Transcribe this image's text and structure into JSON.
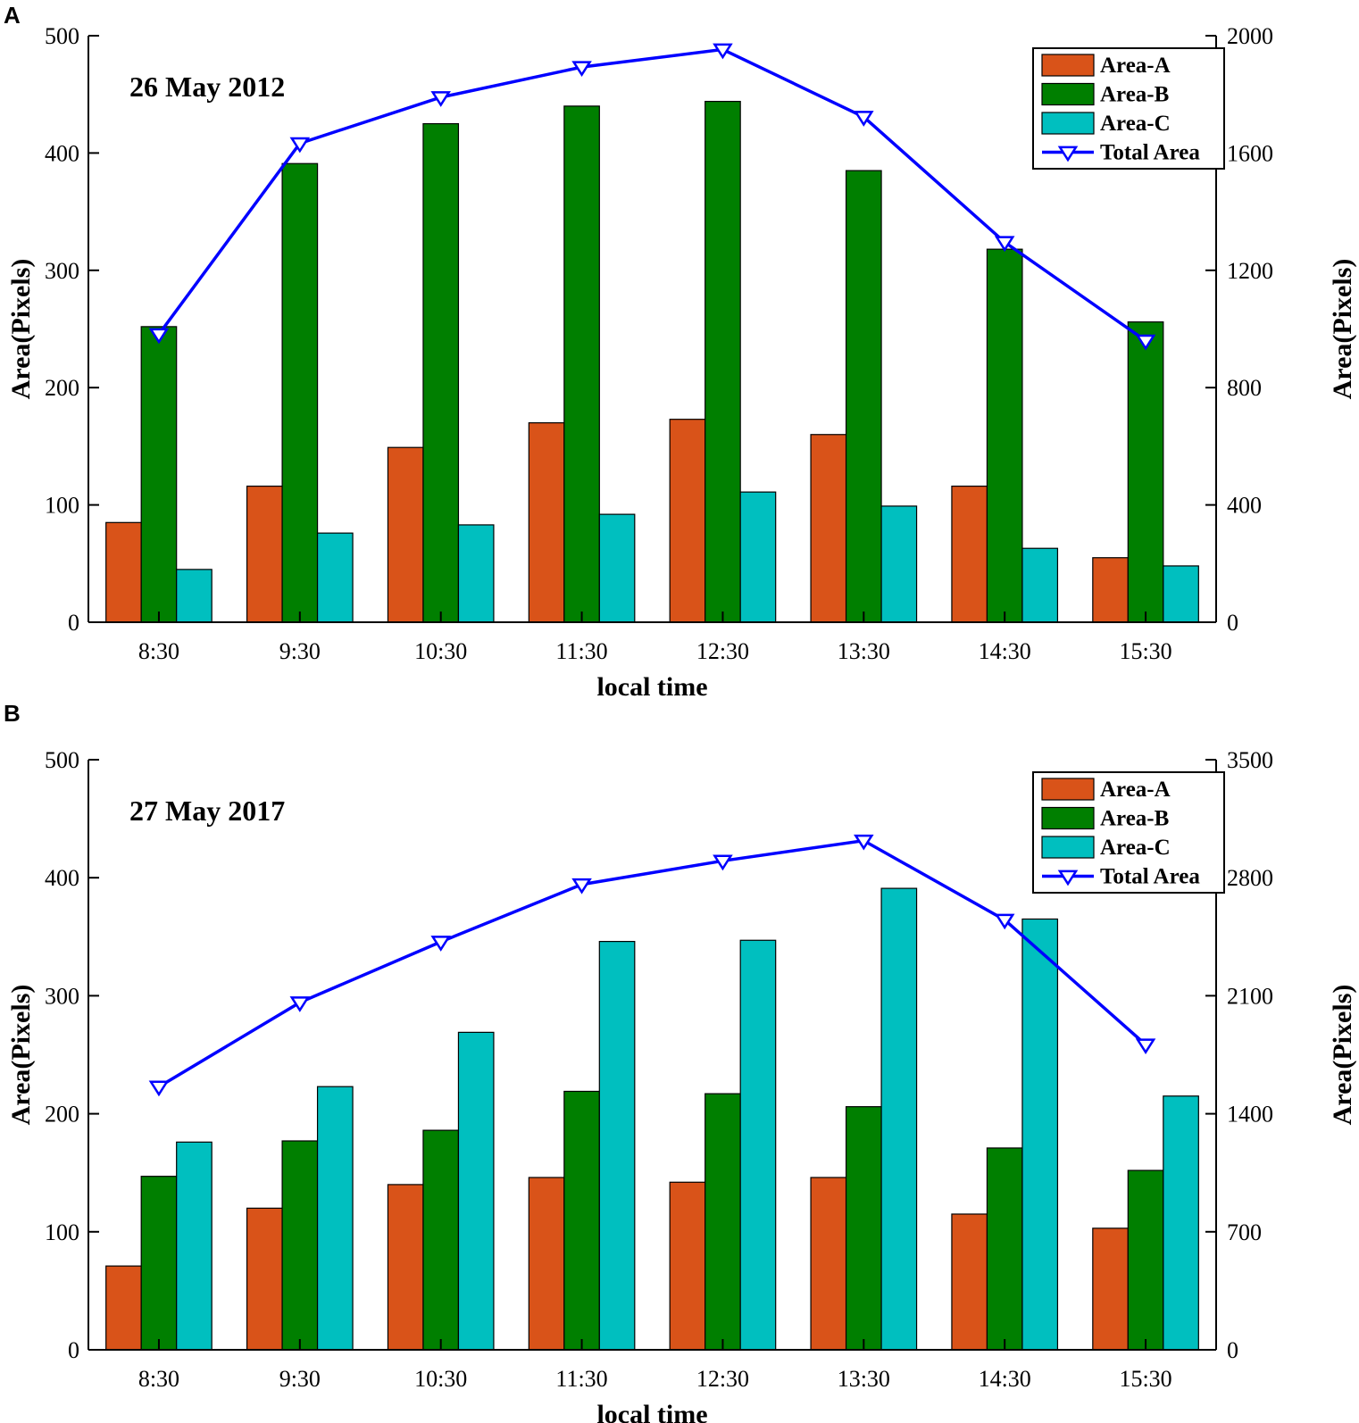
{
  "chart_data": [
    {
      "panel": "A",
      "type": "bar",
      "annotation": "26 May 2012",
      "categories": [
        "8:30",
        "9:30",
        "10:30",
        "11:30",
        "12:30",
        "13:30",
        "14:30",
        "15:30"
      ],
      "series": [
        {
          "name": "Area-A",
          "type": "bar",
          "axis": "left",
          "color": "#D95319",
          "values": [
            85,
            116,
            149,
            170,
            173,
            160,
            116,
            55
          ]
        },
        {
          "name": "Area-B",
          "type": "bar",
          "axis": "left",
          "color": "#007F00",
          "values": [
            252,
            391,
            425,
            440,
            444,
            385,
            318,
            256
          ]
        },
        {
          "name": "Area-C",
          "type": "bar",
          "axis": "left",
          "color": "#00BFBF",
          "values": [
            45,
            76,
            83,
            92,
            111,
            99,
            63,
            48
          ]
        },
        {
          "name": "Total Area",
          "type": "line",
          "axis": "right",
          "color": "#0000FF",
          "marker": "triangle-down",
          "values": [
            982,
            1633,
            1790,
            1893,
            1953,
            1723,
            1296,
            960
          ]
        }
      ],
      "xlabel": "local time",
      "ylabel": "Area(Pixels)",
      "ylabel_right": "Area(Pixels)",
      "ylim": [
        0,
        500
      ],
      "yticks": [
        0,
        100,
        200,
        300,
        400,
        500
      ],
      "ylim_right": [
        0,
        2000
      ],
      "yticks_right": [
        0,
        400,
        800,
        1200,
        1600,
        2000
      ],
      "legend": [
        "Area-A",
        "Area-B",
        "Area-C",
        "Total Area"
      ],
      "legend_position": "top-right",
      "grid": false
    },
    {
      "panel": "B",
      "type": "bar",
      "annotation": "27 May 2017",
      "categories": [
        "8:30",
        "9:30",
        "10:30",
        "11:30",
        "12:30",
        "13:30",
        "14:30",
        "15:30"
      ],
      "series": [
        {
          "name": "Area-A",
          "type": "bar",
          "axis": "left",
          "color": "#D95319",
          "values": [
            71,
            120,
            140,
            146,
            142,
            146,
            115,
            103
          ]
        },
        {
          "name": "Area-B",
          "type": "bar",
          "axis": "left",
          "color": "#007F00",
          "values": [
            147,
            177,
            186,
            219,
            217,
            206,
            171,
            152
          ]
        },
        {
          "name": "Area-C",
          "type": "bar",
          "axis": "left",
          "color": "#00BFBF",
          "values": [
            176,
            223,
            269,
            346,
            347,
            391,
            365,
            215
          ]
        },
        {
          "name": "Total Area",
          "type": "line",
          "axis": "right",
          "color": "#0000FF",
          "marker": "triangle-down",
          "values": [
            1560,
            2060,
            2420,
            2760,
            2900,
            3020,
            2550,
            1810
          ]
        }
      ],
      "xlabel": "local time",
      "ylabel": "Area(Pixels)",
      "ylabel_right": "Area(Pixels)",
      "ylim": [
        0,
        500
      ],
      "yticks": [
        0,
        100,
        200,
        300,
        400,
        500
      ],
      "ylim_right": [
        0,
        3500
      ],
      "yticks_right": [
        0,
        700,
        1400,
        2100,
        2800,
        3500
      ],
      "legend": [
        "Area-A",
        "Area-B",
        "Area-C",
        "Total Area"
      ],
      "legend_position": "top-right",
      "grid": false
    }
  ]
}
